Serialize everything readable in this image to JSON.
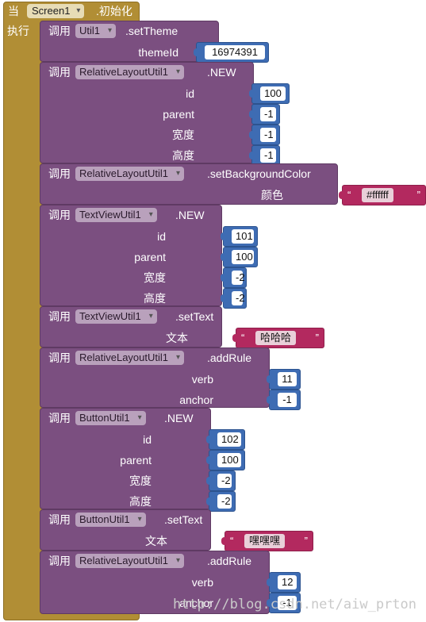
{
  "event": {
    "when_label": "当",
    "component": "Screen1",
    "event_name": ".初始化",
    "do_label": "执行"
  },
  "call_label": "调用",
  "blocks": [
    {
      "component": "Util1",
      "method": ".setTheme",
      "params": [
        {
          "label": "themeId",
          "kind": "number",
          "value": "16974391"
        }
      ]
    },
    {
      "component": "RelativeLayoutUtil1",
      "method": ".NEW",
      "params": [
        {
          "label": "id",
          "kind": "number",
          "value": "100"
        },
        {
          "label": "parent",
          "kind": "number",
          "value": "-1"
        },
        {
          "label": "宽度",
          "kind": "number",
          "value": "-1"
        },
        {
          "label": "高度",
          "kind": "number",
          "value": "-1"
        }
      ]
    },
    {
      "component": "RelativeLayoutUtil1",
      "method": ".setBackgroundColor",
      "params": [
        {
          "label": "颜色",
          "kind": "text",
          "value": "#ffffff"
        }
      ]
    },
    {
      "component": "TextViewUtil1",
      "method": ".NEW",
      "params": [
        {
          "label": "id",
          "kind": "number",
          "value": "101"
        },
        {
          "label": "parent",
          "kind": "number",
          "value": "100"
        },
        {
          "label": "宽度",
          "kind": "number",
          "value": "-2"
        },
        {
          "label": "高度",
          "kind": "number",
          "value": "-2"
        }
      ]
    },
    {
      "component": "TextViewUtil1",
      "method": ".setText",
      "params": [
        {
          "label": "文本",
          "kind": "text",
          "value": "哈哈哈"
        }
      ]
    },
    {
      "component": "RelativeLayoutUtil1",
      "method": ".addRule",
      "params": [
        {
          "label": "verb",
          "kind": "number",
          "value": "11"
        },
        {
          "label": "anchor",
          "kind": "number",
          "value": "-1"
        }
      ]
    },
    {
      "component": "ButtonUtil1",
      "method": ".NEW",
      "params": [
        {
          "label": "id",
          "kind": "number",
          "value": "102"
        },
        {
          "label": "parent",
          "kind": "number",
          "value": "100"
        },
        {
          "label": "宽度",
          "kind": "number",
          "value": "-2"
        },
        {
          "label": "高度",
          "kind": "number",
          "value": "-2"
        }
      ]
    },
    {
      "component": "ButtonUtil1",
      "method": ".setText",
      "params": [
        {
          "label": "文本",
          "kind": "text",
          "value": "嘿嘿嘿"
        }
      ]
    },
    {
      "component": "RelativeLayoutUtil1",
      "method": ".addRule",
      "params": [
        {
          "label": "verb",
          "kind": "number",
          "value": "12"
        },
        {
          "label": "anchor",
          "kind": "number",
          "value": "-1"
        }
      ]
    }
  ],
  "watermark": "http://blog.csdn.net/aiw_prton"
}
